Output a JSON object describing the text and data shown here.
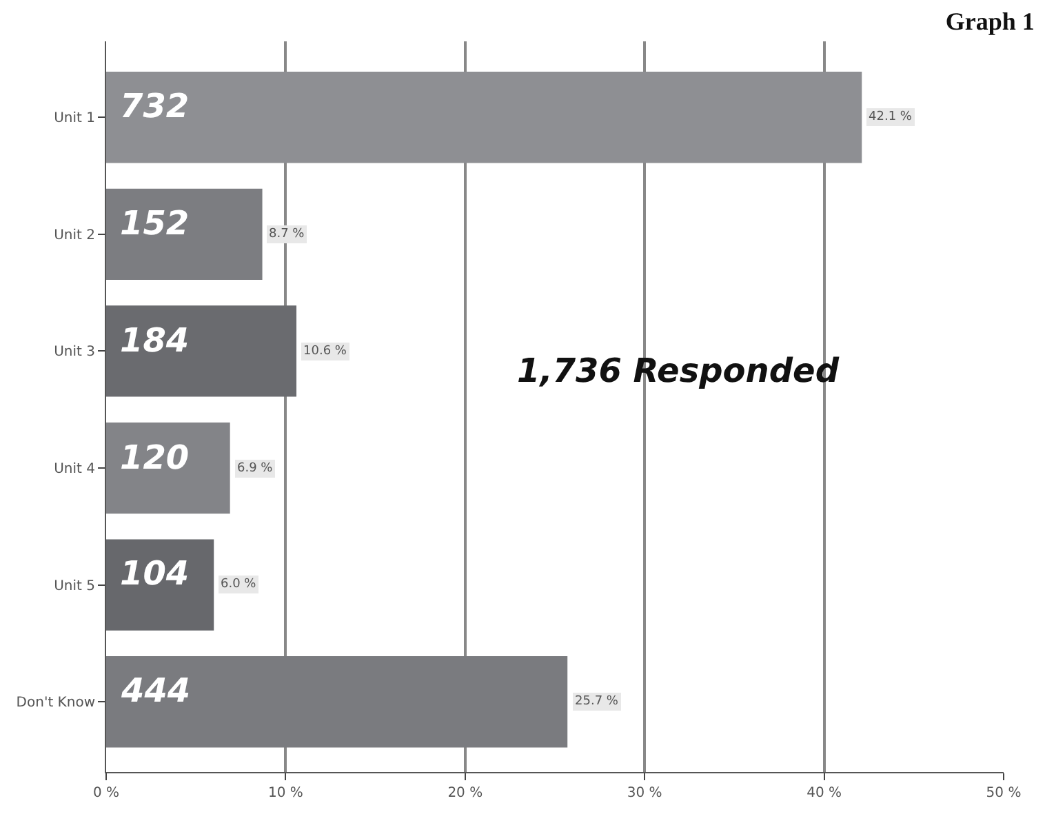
{
  "chart_data": {
    "type": "bar",
    "orientation": "horizontal",
    "title": "Graph 1",
    "categories": [
      "Unit 1",
      "Unit 2",
      "Unit 3",
      "Unit 4",
      "Unit 5",
      "Don't Know"
    ],
    "values": [
      42.1,
      8.7,
      10.6,
      6.9,
      6.0,
      25.7
    ],
    "colors": [
      "#8e8f93",
      "#7c7d81",
      "#6a6b6f",
      "#838488",
      "#67686c",
      "#7a7b7f"
    ],
    "value_labels": [
      "42.1 %",
      "8.7 %",
      "10.6 %",
      "6.9 %",
      "6.0 %",
      "25.7 %"
    ],
    "annotations": [
      {
        "text": "732",
        "y": "Unit 1"
      },
      {
        "text": "152",
        "y": "Unit 2"
      },
      {
        "text": "184",
        "y": "Unit 3"
      },
      {
        "text": "120",
        "y": "Unit 4"
      },
      {
        "text": "104",
        "y": "Unit 5"
      },
      {
        "text": "444",
        "y": "Don't Know"
      },
      "1,736 Responded"
    ],
    "xlim": [
      0,
      50
    ],
    "xticks": [
      {
        "value": 0,
        "label": "0 %"
      },
      {
        "value": 10,
        "label": "10 %"
      },
      {
        "value": 20,
        "label": "20 %"
      },
      {
        "value": 30,
        "label": "30 %"
      },
      {
        "value": 40,
        "label": "40 %"
      },
      {
        "value": 50,
        "label": "50 %"
      }
    ],
    "grid": "x",
    "legend": false
  }
}
